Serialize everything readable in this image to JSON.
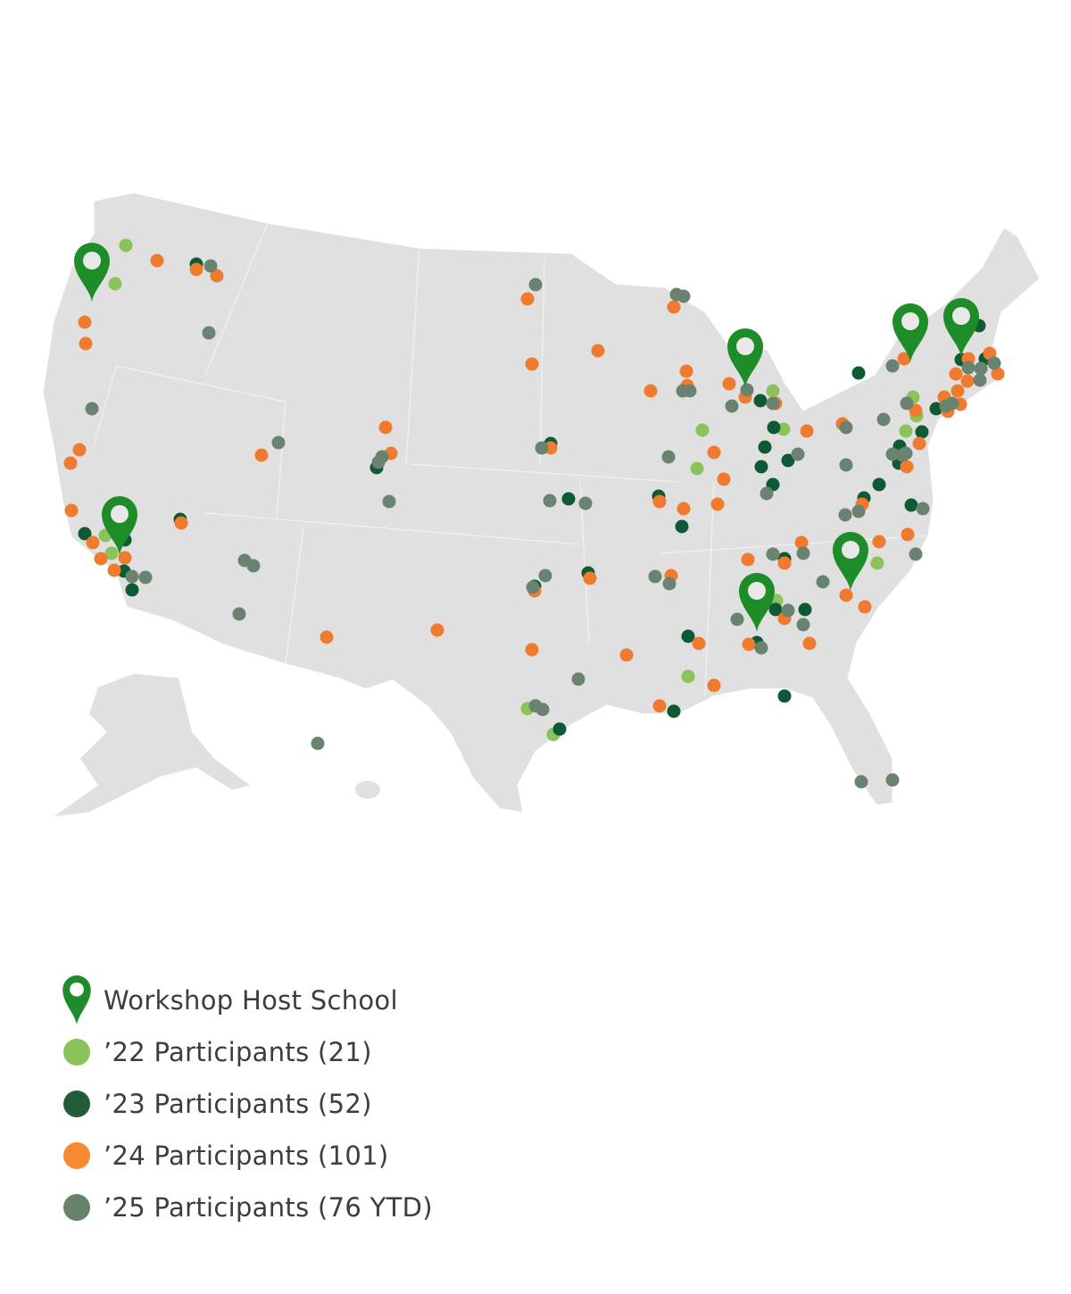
{
  "legend": {
    "items": [
      {
        "key": "host",
        "label": "Workshop Host School",
        "icon": "map-pin-icon",
        "color": "#1E8C28"
      },
      {
        "key": "y22",
        "label": "’22 Participants (21)",
        "icon": "circle",
        "color": "#8BC25A"
      },
      {
        "key": "y23",
        "label": "’23 Participants (52)",
        "icon": "circle",
        "color": "#245B39"
      },
      {
        "key": "y24",
        "label": "’24 Participants (101)",
        "icon": "circle",
        "color": "#F58A30"
      },
      {
        "key": "y25",
        "label": "’25 Participants (76 YTD)",
        "icon": "circle",
        "color": "#66826A"
      }
    ]
  },
  "map": {
    "region": "United States",
    "land_color": "#E0E0E0",
    "border_color": "#FFFFFF",
    "dot_colors": {
      "y22": "#8BC25A",
      "y23": "#0E5A34",
      "y24": "#F07A2E",
      "y25": "#6A8270"
    },
    "pin_color": "#1E8C28"
  }
}
